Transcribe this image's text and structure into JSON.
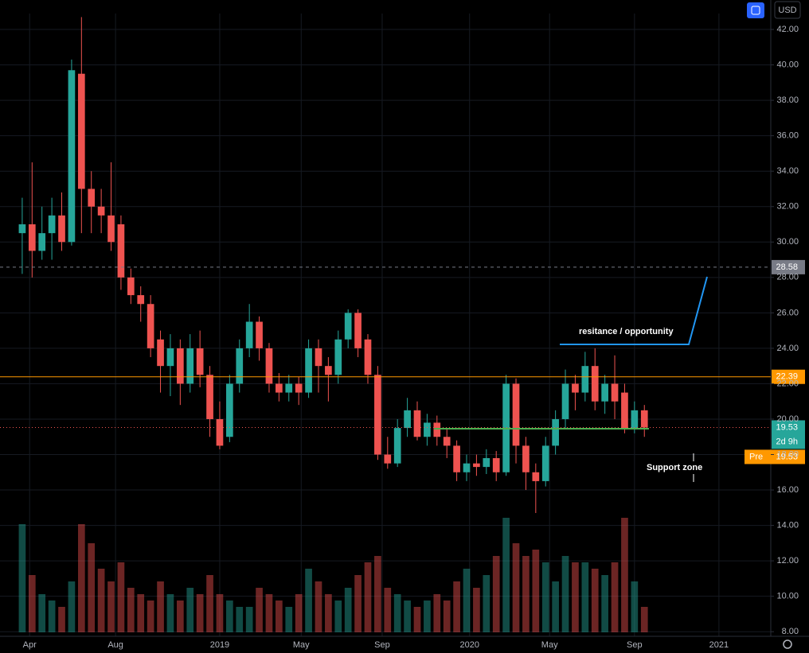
{
  "chart_data": {
    "type": "candlestick",
    "currency": "USD",
    "x": [
      0,
      2,
      4,
      6,
      8,
      10,
      12,
      14,
      16,
      18,
      20,
      22,
      24,
      26,
      28,
      30,
      32,
      34,
      36,
      38,
      40,
      42,
      44,
      46,
      48,
      50,
      52,
      54,
      56,
      58,
      60,
      62,
      64,
      66,
      68,
      70,
      72,
      74,
      76,
      78,
      80,
      82,
      84,
      86,
      88,
      90,
      92,
      94,
      96,
      98,
      100,
      102,
      104,
      106,
      108,
      110,
      112,
      114,
      116,
      118,
      120,
      122,
      124,
      126
    ],
    "open": [
      30.5,
      31,
      29.5,
      30.5,
      31.5,
      30,
      39.5,
      33,
      32,
      31.5,
      31,
      28,
      27,
      26.5,
      24.5,
      23,
      24,
      22,
      24,
      22.5,
      20,
      19,
      22,
      24,
      25.5,
      24,
      22,
      21.5,
      22,
      21.5,
      24,
      23,
      22.5,
      24.5,
      26,
      24.5,
      22.5,
      18,
      17.5,
      19.5,
      20.5,
      19,
      19.8,
      19,
      18.5,
      17,
      17.5,
      17.3,
      17.8,
      17,
      22,
      18.5,
      17,
      16.5,
      18.5,
      20,
      22,
      21.5,
      23,
      21,
      22,
      21.5,
      19.5,
      20.5
    ],
    "high": [
      32.5,
      34.5,
      32,
      32.5,
      32.8,
      40.3,
      42.7,
      34,
      33,
      34.5,
      31.5,
      28.5,
      27.5,
      27,
      25,
      24.8,
      24.5,
      24.8,
      25,
      23,
      21,
      22.5,
      24.5,
      26.5,
      25.8,
      24.3,
      22.6,
      22.5,
      22.4,
      24.5,
      24.5,
      23.5,
      25,
      26.2,
      26.2,
      24.8,
      23,
      19,
      20,
      21.2,
      21,
      20.3,
      20.2,
      19.5,
      18.8,
      18,
      18,
      18.3,
      18.2,
      22.5,
      22.3,
      19,
      17.5,
      19,
      20.5,
      22.8,
      22.5,
      23.8,
      24,
      22.5,
      23.6,
      22,
      21,
      20.8
    ],
    "low": [
      28.2,
      28,
      29,
      29,
      29.5,
      29.8,
      30.5,
      30.5,
      30.5,
      29.5,
      27.3,
      26.5,
      25.5,
      23.5,
      21.5,
      21.3,
      20.8,
      21.5,
      21.8,
      19,
      18.3,
      18.7,
      21.5,
      23.5,
      23.3,
      21.5,
      21,
      21,
      20.8,
      21.2,
      21.5,
      21,
      22,
      24,
      23.5,
      22,
      17.7,
      17.2,
      17.3,
      19,
      18.8,
      18.5,
      18.5,
      17.8,
      16.5,
      16.5,
      16.8,
      16.9,
      16.5,
      16.8,
      17.5,
      16,
      14.7,
      16.2,
      18,
      19.5,
      20.5,
      21,
      20.5,
      20.3,
      20,
      19.2,
      19.2,
      19
    ],
    "close": [
      31,
      29.5,
      30.5,
      31.5,
      30,
      39.7,
      33,
      32,
      31.5,
      30,
      28,
      27,
      26.5,
      24,
      23,
      24,
      22,
      24,
      22.5,
      20,
      18.5,
      22,
      24,
      25.5,
      24,
      22,
      21.5,
      22,
      21.5,
      24,
      23,
      22.5,
      24.5,
      26,
      24,
      22.5,
      18,
      17.5,
      19.5,
      20.5,
      19,
      19.8,
      19,
      18.5,
      17,
      17.5,
      17.3,
      17.8,
      17,
      22,
      18.5,
      17,
      16.5,
      18.5,
      20,
      22,
      21.5,
      23,
      21,
      22,
      21,
      19.5,
      20.5,
      19.53
    ],
    "volume": [
      85,
      45,
      30,
      25,
      20,
      40,
      85,
      70,
      50,
      40,
      55,
      35,
      30,
      25,
      40,
      30,
      25,
      35,
      30,
      45,
      30,
      25,
      20,
      20,
      35,
      30,
      25,
      20,
      30,
      50,
      40,
      30,
      25,
      35,
      45,
      55,
      60,
      35,
      30,
      25,
      20,
      25,
      30,
      25,
      40,
      50,
      35,
      45,
      60,
      90,
      70,
      60,
      65,
      55,
      40,
      60,
      55,
      55,
      50,
      45,
      55,
      90,
      40,
      20
    ],
    "vlim": [
      0,
      100
    ],
    "up_color": "#26a69a",
    "down_color": "#ef5350",
    "xlim": [
      -4.5,
      151.6
    ],
    "xticks": [
      {
        "value": 1.5,
        "label": "Apr"
      },
      {
        "value": 18.9,
        "label": "Aug"
      },
      {
        "value": 40,
        "label": "2019"
      },
      {
        "value": 56.5,
        "label": "May"
      },
      {
        "value": 72.9,
        "label": "Sep"
      },
      {
        "value": 90.6,
        "label": "2020"
      },
      {
        "value": 106.8,
        "label": "May"
      },
      {
        "value": 124,
        "label": "Sep"
      },
      {
        "value": 141.1,
        "label": "2021"
      }
    ],
    "ylim": [
      7.74,
      42.9
    ],
    "yticks": [
      {
        "value": 8,
        "label": "8.00"
      },
      {
        "value": 10,
        "label": "10.00"
      },
      {
        "value": 12,
        "label": "12.00"
      },
      {
        "value": 14,
        "label": "14.00"
      },
      {
        "value": 16,
        "label": "16.00"
      },
      {
        "value": 18,
        "label": "18.00"
      },
      {
        "value": 20,
        "label": "20.00"
      },
      {
        "value": 22,
        "label": "22.00"
      },
      {
        "value": 24,
        "label": "24.00"
      },
      {
        "value": 26,
        "label": "26.00"
      },
      {
        "value": 28,
        "label": "28.00"
      },
      {
        "value": 30,
        "label": "30.00"
      },
      {
        "value": 32,
        "label": "32.00"
      },
      {
        "value": 34,
        "label": "34.00"
      },
      {
        "value": 36,
        "label": "36.00"
      },
      {
        "value": 38,
        "label": "38.00"
      },
      {
        "value": 40,
        "label": "40.00"
      },
      {
        "value": 42,
        "label": "42.00"
      }
    ],
    "grid": true,
    "lines": [
      {
        "value": 28.58,
        "color": "#787b86"
      },
      {
        "value": 22.39,
        "color": "#ff9800"
      }
    ],
    "last_price": 19.53,
    "countdown": "2d 9h",
    "pre_label": "Pre",
    "pre_price": 19.53,
    "annotations": [
      "resitance /  opportunity",
      "Support zone"
    ]
  }
}
